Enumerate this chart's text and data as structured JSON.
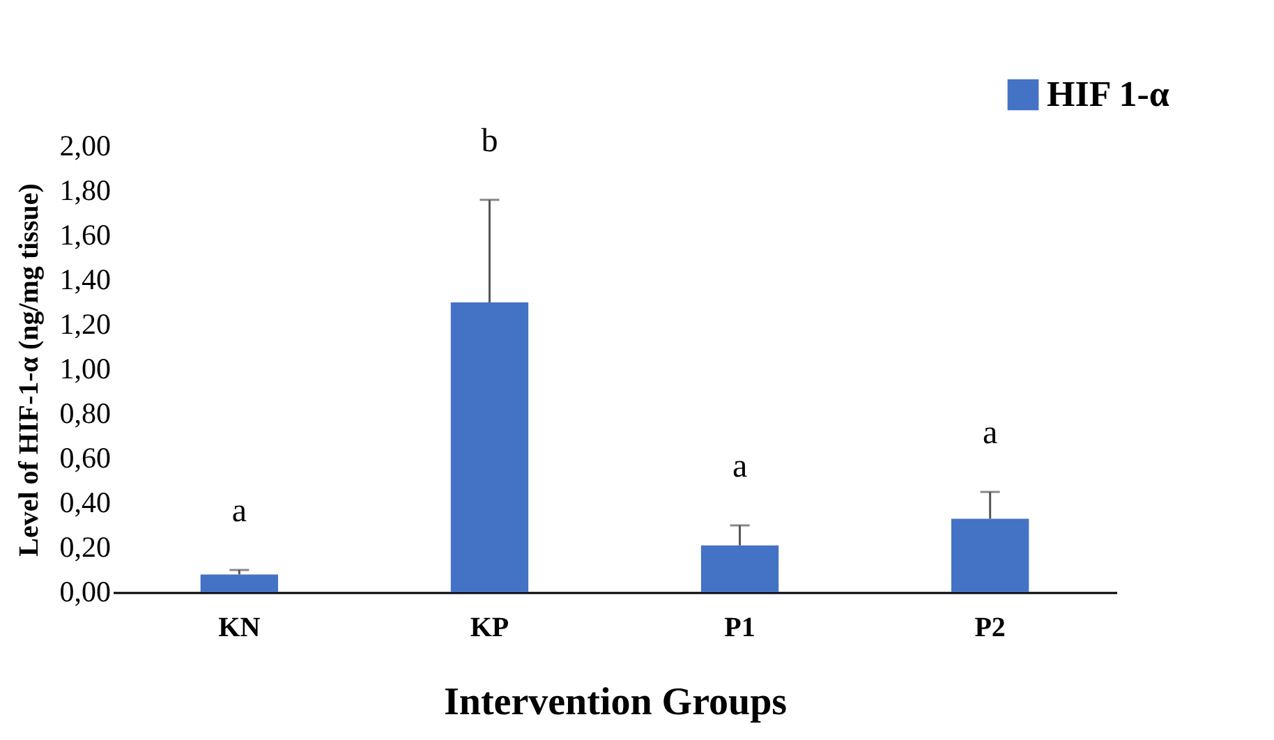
{
  "chart_data": {
    "type": "bar",
    "xlabel": "Intervention Groups",
    "ylabel": "Level of  HIF-1-α (ng/mg tissue)",
    "categories": [
      "KN",
      "KP",
      "P1",
      "P2"
    ],
    "series": [
      {
        "name": "HIF 1-α",
        "color": "#4472c4",
        "values": [
          0.08,
          1.3,
          0.21,
          0.33
        ],
        "errors": [
          [
            0.08,
            0.1
          ],
          [
            1.3,
            1.76
          ],
          [
            0.21,
            0.3
          ],
          [
            0.33,
            0.45
          ]
        ]
      }
    ],
    "ylim": [
      0,
      2
    ],
    "yticks": [
      {
        "value": 0,
        "label": "0,00"
      },
      {
        "value": 0.2,
        "label": "0,20"
      },
      {
        "value": 0.4,
        "label": "0,40"
      },
      {
        "value": 0.6,
        "label": "0,60"
      },
      {
        "value": 0.8,
        "label": "0,80"
      },
      {
        "value": 1.0,
        "label": "1,00"
      },
      {
        "value": 1.2,
        "label": "1,20"
      },
      {
        "value": 1.4,
        "label": "1,40"
      },
      {
        "value": 1.6,
        "label": "1,60"
      },
      {
        "value": 1.8,
        "label": "1,80"
      },
      {
        "value": 2.0,
        "label": "2,00"
      }
    ],
    "annotations": [
      "a",
      "b",
      "a",
      "a"
    ],
    "legend": "top right",
    "grid": false
  }
}
